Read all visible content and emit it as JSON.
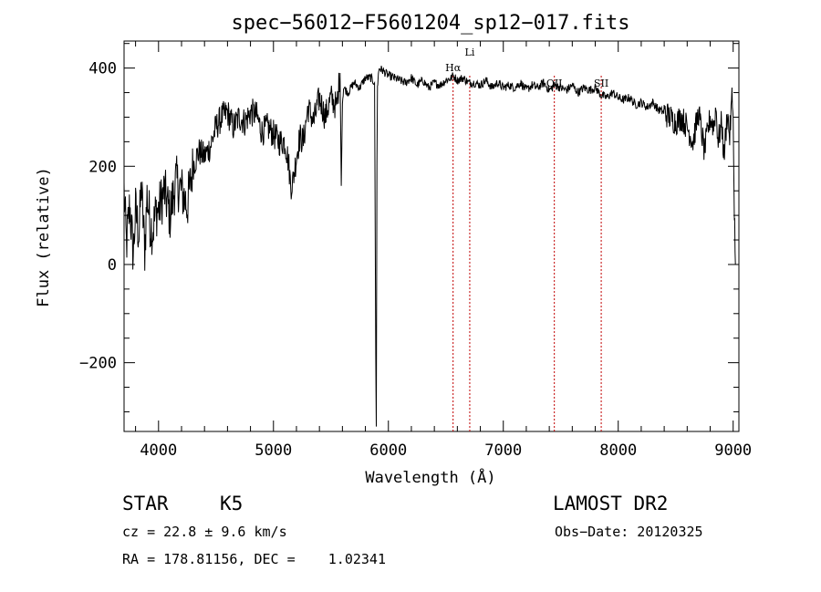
{
  "chart_data": {
    "type": "line",
    "title": "spec−56012−F5601204_sp12−017.fits",
    "xlabel": "Wavelength (Å)",
    "ylabel": "Flux (relative)",
    "xlim": [
      3700,
      9050
    ],
    "ylim": [
      -340,
      455
    ],
    "xticks": [
      4000,
      5000,
      6000,
      7000,
      8000,
      9000
    ],
    "yticks": [
      400,
      200,
      0,
      -200
    ],
    "ytick_labels": [
      "400",
      "200",
      "0",
      "−200"
    ],
    "grid": false,
    "line_color": "#000000",
    "marker_color": "#c00000",
    "spectrum": {
      "x": [
        3700,
        3720,
        3750,
        3780,
        3800,
        3830,
        3850,
        3880,
        3900,
        3930,
        3950,
        3980,
        4000,
        4050,
        4100,
        4150,
        4200,
        4250,
        4300,
        4350,
        4400,
        4450,
        4500,
        4550,
        4600,
        4650,
        4700,
        4750,
        4800,
        4850,
        4900,
        4950,
        5000,
        5050,
        5100,
        5130,
        5150,
        5170,
        5200,
        5230,
        5260,
        5300,
        5350,
        5400,
        5450,
        5500,
        5550,
        5580,
        5590,
        5600,
        5610,
        5650,
        5700,
        5750,
        5800,
        5850,
        5880,
        5890,
        5895,
        5900,
        5905,
        5910,
        5920,
        5950,
        6000,
        6050,
        6100,
        6150,
        6200,
        6250,
        6300,
        6350,
        6400,
        6450,
        6500,
        6550,
        6563,
        6600,
        6650,
        6700,
        6750,
        6800,
        6850,
        6900,
        6950,
        7000,
        7050,
        7100,
        7150,
        7200,
        7250,
        7300,
        7350,
        7400,
        7450,
        7500,
        7550,
        7600,
        7650,
        7700,
        7750,
        7800,
        7850,
        7900,
        7950,
        8000,
        8050,
        8100,
        8150,
        8200,
        8250,
        8300,
        8350,
        8400,
        8450,
        8500,
        8550,
        8600,
        8650,
        8700,
        8750,
        8800,
        8830,
        8850,
        8870,
        8900,
        8920,
        8950,
        8970,
        8990,
        9000,
        9010,
        9020
      ],
      "y": [
        150,
        40,
        120,
        20,
        110,
        60,
        160,
        30,
        140,
        80,
        70,
        110,
        110,
        150,
        100,
        170,
        150,
        120,
        200,
        230,
        220,
        240,
        280,
        300,
        310,
        280,
        300,
        290,
        310,
        305,
        270,
        280,
        265,
        250,
        250,
        210,
        160,
        170,
        220,
        260,
        250,
        320,
        290,
        340,
        300,
        340,
        320,
        390,
        160,
        330,
        360,
        350,
        370,
        360,
        380,
        380,
        370,
        -190,
        -330,
        200,
        360,
        380,
        400,
        395,
        385,
        380,
        375,
        370,
        380,
        365,
        375,
        360,
        370,
        365,
        375,
        380,
        385,
        375,
        380,
        370,
        370,
        365,
        375,
        360,
        370,
        360,
        365,
        360,
        370,
        355,
        365,
        360,
        370,
        355,
        365,
        360,
        355,
        365,
        350,
        360,
        355,
        360,
        345,
        340,
        350,
        340,
        335,
        340,
        325,
        330,
        320,
        330,
        315,
        310,
        300,
        290,
        300,
        280,
        250,
        310,
        230,
        300,
        280,
        320,
        250,
        290,
        220,
        310,
        260,
        340,
        300,
        120,
        0
      ]
    },
    "lines": [
      {
        "label": "Hα",
        "x": 6563
      },
      {
        "label": "Li",
        "x": 6708
      },
      {
        "label": "OII",
        "x": 7444
      },
      {
        "label": "SII",
        "x": 7852
      }
    ]
  },
  "info": {
    "object_class": "STAR",
    "subclass": "K5",
    "survey": "LAMOST DR2",
    "cz": "cz = 22.8 ± 9.6 km/s",
    "obs_date": "Obs−Date: 20120325",
    "coords": "RA = 178.81156, DEC =    1.02341"
  }
}
